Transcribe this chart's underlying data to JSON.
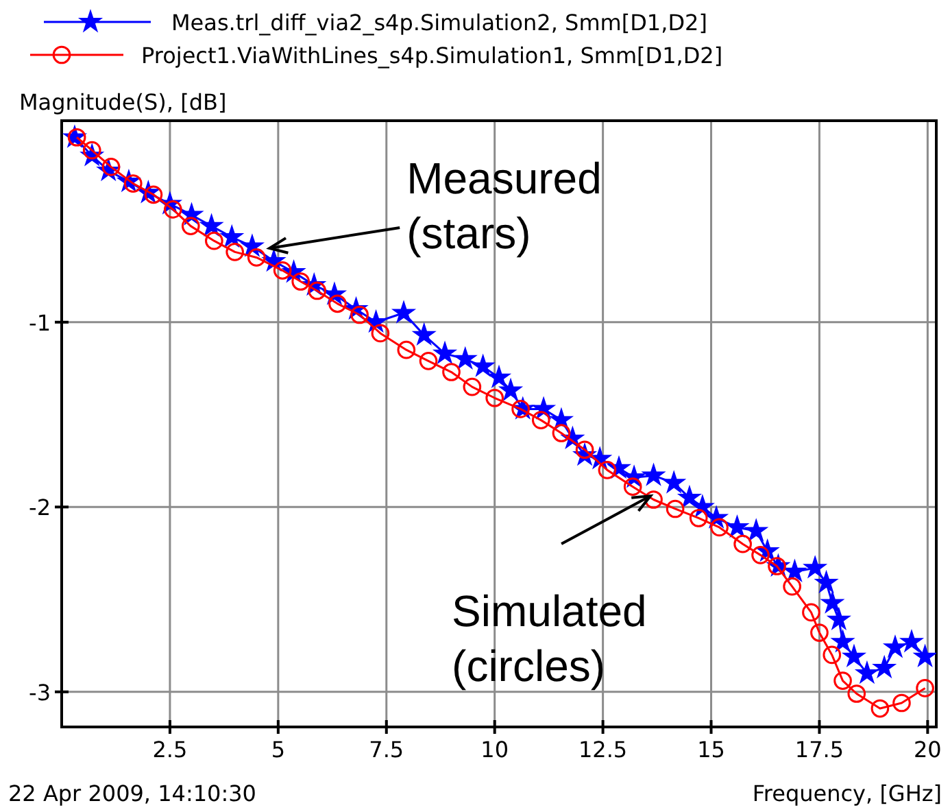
{
  "chart_data": {
    "type": "line",
    "xlabel": "Frequency, [GHz]",
    "ylabel": "Magnitude(S), [dB]",
    "xlim": [
      0,
      20.2
    ],
    "xticks": [
      2.5,
      5,
      7.5,
      10,
      12.5,
      15,
      17.5,
      20
    ],
    "ylim": [
      -3.19,
      0.09
    ],
    "yticks": [
      -1,
      -2,
      -3
    ],
    "grid": true,
    "legend": "top",
    "series": [
      {
        "name": "Meas.trl_diff_via2_s4p.Simulation2, Smm[D1,D2]",
        "color": "#0000ff",
        "marker": "star",
        "x": [
          0.3,
          0.7,
          1.08,
          1.55,
          2.0,
          2.5,
          3.0,
          3.46,
          3.93,
          4.4,
          4.9,
          5.36,
          5.83,
          6.3,
          6.8,
          7.26,
          7.9,
          8.37,
          8.85,
          9.32,
          9.73,
          10.1,
          10.37,
          10.65,
          11.13,
          11.54,
          11.8,
          12.08,
          12.43,
          12.87,
          13.22,
          13.67,
          14.14,
          14.5,
          14.8,
          15.12,
          15.6,
          16.04,
          16.3,
          16.55,
          16.93,
          17.4,
          17.66,
          17.8,
          17.95,
          18.04,
          18.3,
          18.6,
          19.0,
          19.25,
          19.63,
          19.94
        ],
        "values": [
          0,
          -0.1,
          -0.18,
          -0.24,
          -0.3,
          -0.36,
          -0.42,
          -0.48,
          -0.54,
          -0.59,
          -0.67,
          -0.73,
          -0.8,
          -0.85,
          -0.93,
          -1.0,
          -0.95,
          -1.07,
          -1.17,
          -1.2,
          -1.24,
          -1.3,
          -1.37,
          -1.47,
          -1.47,
          -1.53,
          -1.63,
          -1.72,
          -1.74,
          -1.79,
          -1.84,
          -1.83,
          -1.87,
          -1.95,
          -2.0,
          -2.06,
          -2.11,
          -2.13,
          -2.24,
          -2.32,
          -2.35,
          -2.33,
          -2.41,
          -2.52,
          -2.61,
          -2.73,
          -2.81,
          -2.9,
          -2.87,
          -2.76,
          -2.73,
          -2.81
        ]
      },
      {
        "name": "Project1.ViaWithLines_s4p.Simulation1, Smm[D1,D2]",
        "color": "#ff0000",
        "marker": "circle",
        "x": [
          0.35,
          0.7,
          1.14,
          1.65,
          2.12,
          2.57,
          2.98,
          3.52,
          4.0,
          4.5,
          5.1,
          5.52,
          5.9,
          6.37,
          6.88,
          7.36,
          7.96,
          8.47,
          9.0,
          9.48,
          10.0,
          10.6,
          11.07,
          11.54,
          12.08,
          12.6,
          13.19,
          13.67,
          14.17,
          14.71,
          15.19,
          15.73,
          16.14,
          16.52,
          16.87,
          17.31,
          17.5,
          17.79,
          18.04,
          18.36,
          18.9,
          19.4,
          19.94
        ],
        "values": [
          0,
          -0.07,
          -0.16,
          -0.25,
          -0.31,
          -0.39,
          -0.48,
          -0.56,
          -0.62,
          -0.65,
          -0.72,
          -0.78,
          -0.83,
          -0.9,
          -0.96,
          -1.06,
          -1.15,
          -1.21,
          -1.27,
          -1.35,
          -1.41,
          -1.47,
          -1.53,
          -1.6,
          -1.69,
          -1.8,
          -1.89,
          -1.96,
          -2.01,
          -2.06,
          -2.11,
          -2.2,
          -2.26,
          -2.32,
          -2.43,
          -2.57,
          -2.68,
          -2.8,
          -2.94,
          -3.01,
          -3.09,
          -3.06,
          -2.98
        ]
      }
    ],
    "annotations": [
      {
        "text": "Measured\n(stars)",
        "x": 4.8,
        "y": -0.6
      },
      {
        "text": "Simulated\n(circles)",
        "x": 13.6,
        "y": -1.94
      },
      "22 Apr 2009, 14:10:30"
    ]
  }
}
